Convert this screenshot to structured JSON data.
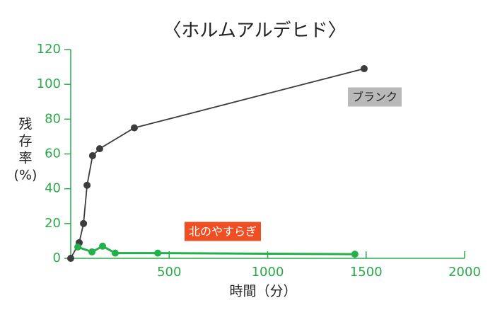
{
  "chart_data": {
    "type": "line",
    "title": "〈ホルムアルデヒド〉",
    "xlabel": "時間（分）",
    "ylabel_lines": [
      "残",
      "存",
      "率",
      "(%)"
    ],
    "xlim": [
      0,
      2000
    ],
    "xticks": [
      500,
      1000,
      1500,
      2000
    ],
    "ylim": [
      0,
      120
    ],
    "yticks": [
      0,
      20,
      40,
      60,
      80,
      100,
      120
    ],
    "axis_color": "#2aa84a",
    "series": [
      {
        "name": "ブランク",
        "color": "#3c3c3c",
        "label_bg": "#b9b9b9",
        "label_text": "#222222",
        "x": [
          0,
          43,
          65,
          83,
          111,
          147,
          323,
          1490
        ],
        "values": [
          0,
          9,
          20,
          42,
          59,
          63,
          75,
          109
        ]
      },
      {
        "name": "北のやすらぎ",
        "color": "#22b04a",
        "label_bg": "#f04e23",
        "label_text": "#ffffff",
        "x": [
          36,
          108,
          162,
          226,
          442,
          1443
        ],
        "values": [
          6.5,
          3.7,
          7,
          3,
          3,
          2.4
        ]
      }
    ]
  }
}
